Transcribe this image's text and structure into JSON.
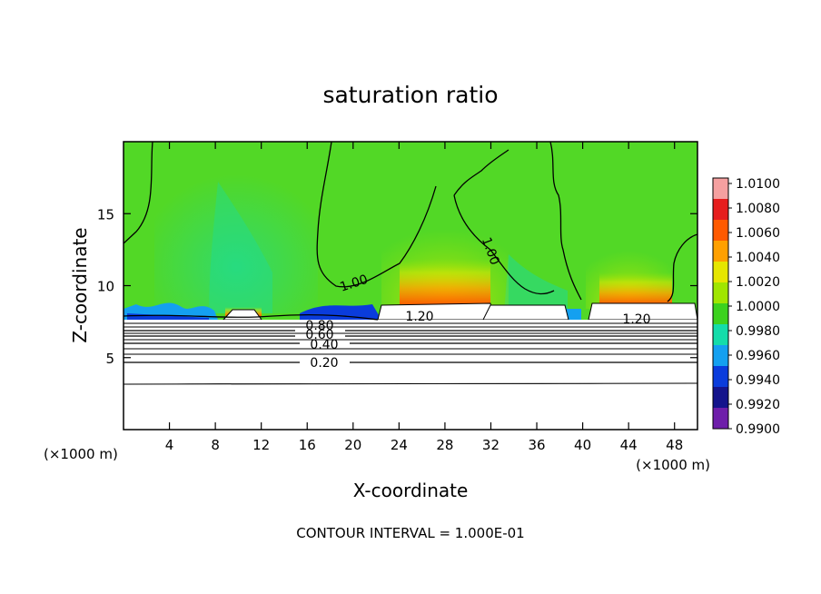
{
  "chart_data": {
    "type": "heatmap",
    "title": "saturation ratio",
    "xlabel": "X-coordinate",
    "ylabel": "Z-coordinate",
    "x_unit_left": "(×1000 m)",
    "x_unit_right": "(×1000 m)",
    "xlim": [
      0,
      50
    ],
    "ylim": [
      0,
      20
    ],
    "x_ticks": [
      4,
      8,
      12,
      16,
      20,
      24,
      28,
      32,
      36,
      40,
      44,
      48
    ],
    "y_ticks": [
      5,
      10,
      15
    ],
    "colorbar": {
      "levels": [
        "1.0100",
        "1.0080",
        "1.0060",
        "1.0040",
        "1.0020",
        "1.0000",
        "0.9980",
        "0.9960",
        "0.9940",
        "0.9920",
        "0.9900"
      ],
      "colors": [
        "#f5a0a0",
        "#e61e1e",
        "#ff5a00",
        "#ffa000",
        "#e6e600",
        "#a0e600",
        "#3cd21e",
        "#14dcaa",
        "#14a0f0",
        "#0a3cdc",
        "#14148c",
        "#6e1eaa"
      ]
    },
    "contour_labels": [
      {
        "text": "1.00",
        "x": 16.8,
        "z": 10.4
      },
      {
        "text": "1.00",
        "x": 31.6,
        "z": 12.0
      },
      {
        "text": "1.20",
        "x": 25.0,
        "z": 7.9
      },
      {
        "text": "1.20",
        "x": 45.0,
        "z": 7.6
      },
      {
        "text": "0.80",
        "x": 17.3,
        "z": 7.2
      },
      {
        "text": "0.60",
        "x": 17.3,
        "z": 6.6
      },
      {
        "text": "0.40",
        "x": 17.6,
        "z": 5.9
      },
      {
        "text": "0.20",
        "x": 17.6,
        "z": 4.6
      }
    ],
    "footnote": "CONTOUR INTERVAL = 1.000E-01"
  }
}
